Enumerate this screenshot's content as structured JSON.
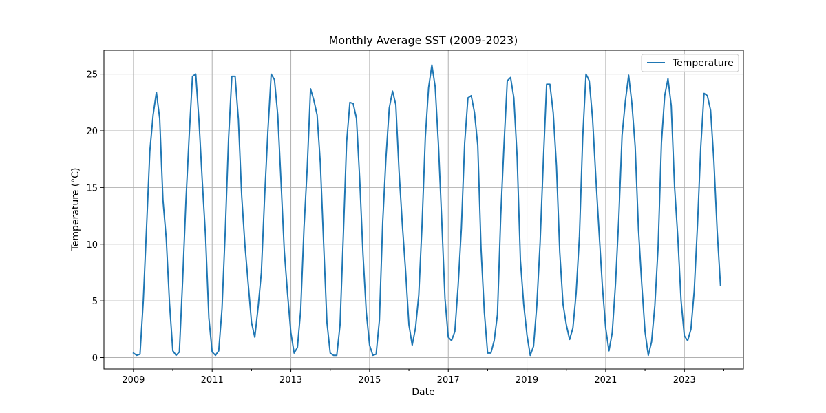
{
  "chart_data": {
    "type": "line",
    "title": "Monthly Average SST (2009-2023)",
    "xlabel": "Date",
    "ylabel": "Temperature (°C)",
    "xlim": [
      "2008-04",
      "2024-07"
    ],
    "ylim": [
      -1.0,
      27.1
    ],
    "x_ticks_major": [
      "2009",
      "2011",
      "2013",
      "2015",
      "2017",
      "2019",
      "2021",
      "2023"
    ],
    "x_ticks_minor": [
      "2010",
      "2012",
      "2014",
      "2016",
      "2018",
      "2020",
      "2022",
      "2024"
    ],
    "y_ticks": [
      "0",
      "5",
      "10",
      "15",
      "20",
      "25"
    ],
    "y_tick_values": [
      0,
      5,
      10,
      15,
      20,
      25
    ],
    "grid": true,
    "legend_position": "top-right",
    "series": [
      {
        "name": "Temperature",
        "color": "#1f77b4",
        "x": [
          "2009-01",
          "2009-02",
          "2009-03",
          "2009-04",
          "2009-05",
          "2009-06",
          "2009-07",
          "2009-08",
          "2009-09",
          "2009-10",
          "2009-11",
          "2009-12",
          "2010-01",
          "2010-02",
          "2010-03",
          "2010-04",
          "2010-05",
          "2010-06",
          "2010-07",
          "2010-08",
          "2010-09",
          "2010-10",
          "2010-11",
          "2010-12",
          "2011-01",
          "2011-02",
          "2011-03",
          "2011-04",
          "2011-05",
          "2011-06",
          "2011-07",
          "2011-08",
          "2011-09",
          "2011-10",
          "2011-11",
          "2011-12",
          "2012-01",
          "2012-02",
          "2012-03",
          "2012-04",
          "2012-05",
          "2012-06",
          "2012-07",
          "2012-08",
          "2012-09",
          "2012-10",
          "2012-11",
          "2012-12",
          "2013-01",
          "2013-02",
          "2013-03",
          "2013-04",
          "2013-05",
          "2013-06",
          "2013-07",
          "2013-08",
          "2013-09",
          "2013-10",
          "2013-11",
          "2013-12",
          "2014-01",
          "2014-02",
          "2014-03",
          "2014-04",
          "2014-05",
          "2014-06",
          "2014-07",
          "2014-08",
          "2014-09",
          "2014-10",
          "2014-11",
          "2014-12",
          "2015-01",
          "2015-02",
          "2015-03",
          "2015-04",
          "2015-05",
          "2015-06",
          "2015-07",
          "2015-08",
          "2015-09",
          "2015-10",
          "2015-11",
          "2015-12",
          "2016-01",
          "2016-02",
          "2016-03",
          "2016-04",
          "2016-05",
          "2016-06",
          "2016-07",
          "2016-08",
          "2016-09",
          "2016-10",
          "2016-11",
          "2016-12",
          "2017-01",
          "2017-02",
          "2017-03",
          "2017-04",
          "2017-05",
          "2017-06",
          "2017-07",
          "2017-08",
          "2017-09",
          "2017-10",
          "2017-11",
          "2017-12",
          "2018-01",
          "2018-02",
          "2018-03",
          "2018-04",
          "2018-05",
          "2018-06",
          "2018-07",
          "2018-08",
          "2018-09",
          "2018-10",
          "2018-11",
          "2018-12",
          "2019-01",
          "2019-02",
          "2019-03",
          "2019-04",
          "2019-05",
          "2019-06",
          "2019-07",
          "2019-08",
          "2019-09",
          "2019-10",
          "2019-11",
          "2019-12",
          "2020-01",
          "2020-02",
          "2020-03",
          "2020-04",
          "2020-05",
          "2020-06",
          "2020-07",
          "2020-08",
          "2020-09",
          "2020-10",
          "2020-11",
          "2020-12",
          "2021-01",
          "2021-02",
          "2021-03",
          "2021-04",
          "2021-05",
          "2021-06",
          "2021-07",
          "2021-08",
          "2021-09",
          "2021-10",
          "2021-11",
          "2021-12",
          "2022-01",
          "2022-02",
          "2022-03",
          "2022-04",
          "2022-05",
          "2022-06",
          "2022-07",
          "2022-08",
          "2022-09",
          "2022-10",
          "2022-11",
          "2022-12",
          "2023-01",
          "2023-02",
          "2023-03",
          "2023-04",
          "2023-05",
          "2023-06",
          "2023-07",
          "2023-08",
          "2023-09",
          "2023-10",
          "2023-11",
          "2023-12"
        ],
        "values": [
          0.4,
          0.2,
          0.3,
          5.0,
          11.5,
          18.2,
          21.4,
          23.4,
          21.1,
          13.9,
          10.5,
          4.8,
          0.6,
          0.2,
          0.5,
          6.8,
          13.8,
          19.6,
          24.8,
          25.0,
          20.8,
          15.5,
          10.6,
          3.5,
          0.5,
          0.2,
          0.6,
          4.3,
          11.2,
          19.3,
          24.8,
          24.8,
          21.0,
          14.3,
          9.9,
          6.5,
          3.1,
          1.8,
          4.4,
          7.5,
          14.2,
          20.0,
          25.0,
          24.5,
          21.4,
          15.5,
          9.4,
          5.6,
          2.2,
          0.4,
          0.9,
          4.2,
          11.4,
          16.8,
          23.7,
          22.7,
          21.4,
          17.1,
          10.0,
          3.1,
          0.4,
          0.2,
          0.2,
          2.9,
          10.8,
          19.0,
          22.5,
          22.4,
          21.1,
          15.7,
          9.1,
          4.0,
          1.1,
          0.2,
          0.3,
          3.3,
          11.9,
          17.6,
          22.0,
          23.5,
          22.3,
          16.4,
          11.7,
          7.6,
          2.9,
          1.1,
          2.6,
          5.5,
          11.7,
          19.4,
          23.8,
          25.8,
          23.9,
          18.8,
          12.2,
          5.2,
          1.8,
          1.5,
          2.3,
          6.3,
          11.4,
          18.9,
          22.9,
          23.1,
          21.6,
          18.7,
          9.6,
          4.0,
          0.4,
          0.4,
          1.5,
          3.8,
          12.5,
          18.8,
          24.4,
          24.7,
          22.9,
          17.7,
          8.6,
          4.7,
          2.0,
          0.2,
          1.0,
          4.6,
          10.1,
          17.4,
          24.1,
          24.1,
          21.6,
          16.9,
          9.3,
          4.7,
          2.9,
          1.6,
          2.6,
          5.7,
          10.7,
          19.4,
          25.0,
          24.4,
          21.1,
          15.9,
          11.0,
          6.3,
          2.6,
          0.6,
          2.2,
          6.5,
          12.3,
          19.6,
          22.6,
          24.9,
          22.4,
          18.6,
          11.3,
          6.5,
          2.3,
          0.2,
          1.4,
          4.6,
          9.8,
          18.9,
          23.1,
          24.6,
          22.2,
          15.1,
          10.6,
          5.0,
          1.9,
          1.5,
          2.5,
          5.9,
          11.7,
          18.6,
          23.3,
          23.1,
          21.8,
          17.3,
          11.2,
          6.4
        ]
      }
    ]
  }
}
